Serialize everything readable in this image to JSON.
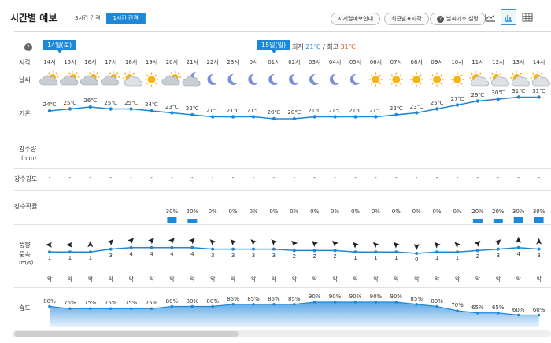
{
  "header": {
    "title": "시간별 예보",
    "tabs": [
      {
        "label": "3시간 간격",
        "active": false
      },
      {
        "label": "1시간 간격",
        "active": true
      }
    ],
    "buttons": {
      "timeseries": "시계열예보안내",
      "recent": "최근발표시각",
      "legend": "날씨기호 설명"
    },
    "help_glyph": "?"
  },
  "days": [
    {
      "label": "14일(토)"
    },
    {
      "label": "15일(일)"
    }
  ],
  "minmax": {
    "min_label": "최저",
    "min_value": "21℃",
    "sep": "/",
    "max_label": "최고",
    "max_value": "31℃"
  },
  "row_labels": {
    "time": "시각",
    "weather": "날씨",
    "temp": "기온",
    "precip_amount": "강수량",
    "precip_unit": "(mm)",
    "precip_intensity": "강수강도",
    "precip_prob": "강수확률",
    "wind_dir": "풍향",
    "wind_speed": "풍속",
    "wind_unit": "(m/s)",
    "humidity": "습도"
  },
  "hours": [
    "14시",
    "15시",
    "16시",
    "17시",
    "18시",
    "19시",
    "20시",
    "21시",
    "22시",
    "23시",
    "0시",
    "01시",
    "02시",
    "03시",
    "04시",
    "05시",
    "06시",
    "07시",
    "08시",
    "09시",
    "10시",
    "11시",
    "12시",
    "13시",
    "14시"
  ],
  "weather": [
    "cloud-sun",
    "cloud-sun",
    "cloud-sun",
    "cloud-sun",
    "sun-cloud",
    "sun",
    "cloud-sun",
    "moon-cloud",
    "moon",
    "moon",
    "moon",
    "moon",
    "moon",
    "moon",
    "moon",
    "moon",
    "sun",
    "sun",
    "sun",
    "sun",
    "sun",
    "sun-cloud",
    "sun-cloud",
    "sun-cloud",
    "sun-cloud"
  ],
  "temps": [
    24,
    25,
    26,
    25,
    25,
    24,
    23,
    22,
    21,
    21,
    21,
    20,
    20,
    21,
    21,
    21,
    21,
    22,
    23,
    25,
    27,
    29,
    30,
    31,
    31
  ],
  "temp_labels": [
    "24℃",
    "25℃",
    "26℃",
    "25℃",
    "25℃",
    "24℃",
    "23℃",
    "22℃",
    "21℃",
    "21℃",
    "21℃",
    "20℃",
    "20℃",
    "21℃",
    "21℃",
    "21℃",
    "21℃",
    "22℃",
    "23℃",
    "25℃",
    "27℃",
    "29℃",
    "30℃",
    "31℃",
    "31℃"
  ],
  "precip_intensity": [
    "-",
    "-",
    "-",
    "-",
    "-",
    "-",
    "-",
    "-",
    "-",
    "-",
    "-",
    "-",
    "-",
    "-",
    "-",
    "-",
    "-",
    "-",
    "-",
    "-",
    "-",
    "-",
    "-",
    "-",
    "-"
  ],
  "precip_prob": [
    0,
    0,
    0,
    0,
    0,
    0,
    30,
    20,
    0,
    0,
    0,
    0,
    0,
    0,
    0,
    0,
    0,
    0,
    0,
    0,
    0,
    20,
    20,
    30,
    30
  ],
  "precip_prob_labels": [
    "",
    "",
    "",
    "",
    "",
    "",
    "30%",
    "20%",
    "0%",
    "0%",
    "0%",
    "0%",
    "0%",
    "0%",
    "0%",
    "0%",
    "0%",
    "0%",
    "0%",
    "0%",
    "0%",
    "20%",
    "20%",
    "30%",
    "30%"
  ],
  "wind_speed": [
    1,
    1,
    1,
    3,
    4,
    4,
    4,
    4,
    3,
    3,
    3,
    3,
    2,
    2,
    2,
    1,
    1,
    1,
    0,
    1,
    1,
    2,
    3,
    4,
    3
  ],
  "wind_dir_deg": [
    270,
    270,
    0,
    45,
    45,
    45,
    45,
    45,
    315,
    315,
    315,
    315,
    315,
    315,
    315,
    315,
    315,
    315,
    180,
    315,
    315,
    45,
    45,
    0,
    0
  ],
  "wind_strength": [
    "약",
    "약",
    "약",
    "약",
    "약",
    "약",
    "약",
    "약",
    "약",
    "약",
    "약",
    "약",
    "약",
    "약",
    "약",
    "약",
    "약",
    "약",
    "약",
    "약",
    "약",
    "약",
    "약",
    "약",
    "약"
  ],
  "humidity": [
    80,
    75,
    75,
    75,
    75,
    75,
    80,
    80,
    80,
    85,
    85,
    85,
    85,
    90,
    90,
    90,
    90,
    90,
    85,
    80,
    70,
    65,
    65,
    60,
    60
  ],
  "humidity_labels": [
    "80%",
    "75%",
    "75%",
    "75%",
    "75%",
    "75%",
    "80%",
    "80%",
    "80%",
    "85%",
    "85%",
    "85%",
    "85%",
    "90%",
    "90%",
    "90%",
    "90%",
    "90%",
    "85%",
    "80%",
    "70%",
    "65%",
    "65%",
    "60%",
    "60%"
  ],
  "scroll_position": 0.0
}
